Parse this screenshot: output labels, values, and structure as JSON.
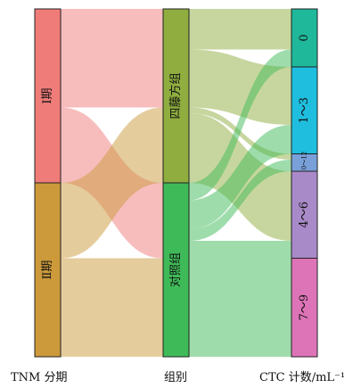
{
  "axis_labels": {
    "stage": "TNM 分期",
    "group": "组别",
    "ctc": "CTC 计数/mL⁻¹"
  },
  "nodes": {
    "stage": [
      {
        "label": "Ⅰ期",
        "value": 30,
        "color": "#f07c79"
      },
      {
        "label": "Ⅱ期",
        "value": 30,
        "color": "#cc9a3b"
      }
    ],
    "group": [
      {
        "label": "四藤方组",
        "value": 30,
        "color": "#8fae3f"
      },
      {
        "label": "对照组",
        "value": 30,
        "color": "#3fba58"
      }
    ],
    "ctc": [
      {
        "label": "0",
        "value": 10,
        "color": "#1fb89a"
      },
      {
        "label": "1～3",
        "value": 15,
        "color": "#1fbede"
      },
      {
        "label": "10～12",
        "value": 3,
        "color": "#7aa0da"
      },
      {
        "label": "4～6",
        "value": 15,
        "color": "#a98ac8"
      },
      {
        "label": "7～9",
        "value": 17,
        "color": "#de74b8"
      }
    ]
  },
  "links_stage_group": [
    {
      "source": 0,
      "target": 0,
      "value": 17
    },
    {
      "source": 0,
      "target": 1,
      "value": 13
    },
    {
      "source": 1,
      "target": 0,
      "value": 13
    },
    {
      "source": 1,
      "target": 1,
      "value": 17
    }
  ],
  "links_group_ctc": [
    {
      "source": 0,
      "target": 0,
      "value": 7
    },
    {
      "source": 0,
      "target": 1,
      "value": 10
    },
    {
      "source": 0,
      "target": 2,
      "value": 1
    },
    {
      "source": 0,
      "target": 3,
      "value": 12
    },
    {
      "source": 1,
      "target": 0,
      "value": 3
    },
    {
      "source": 1,
      "target": 1,
      "value": 5
    },
    {
      "source": 1,
      "target": 2,
      "value": 2
    },
    {
      "source": 1,
      "target": 3,
      "value": 3
    },
    {
      "source": 1,
      "target": 4,
      "value": 17
    }
  ]
}
